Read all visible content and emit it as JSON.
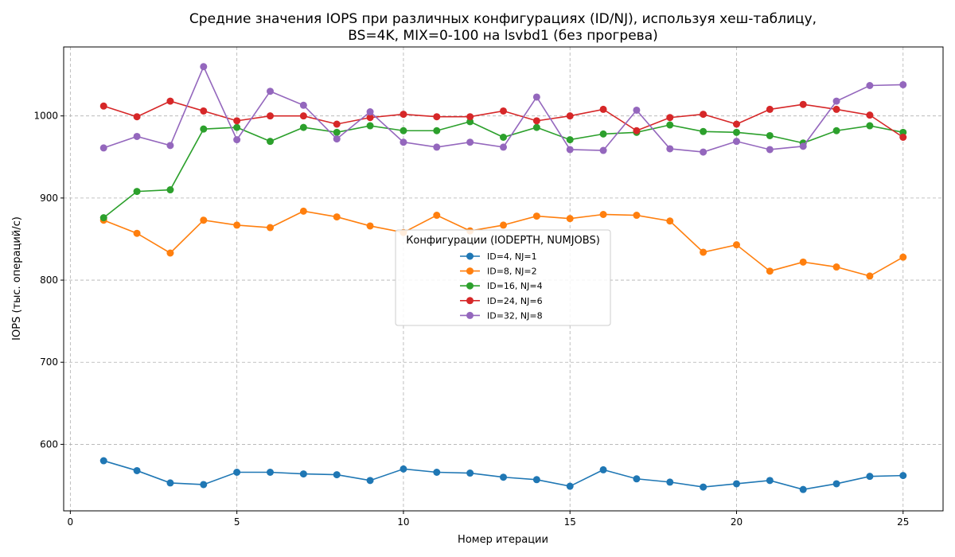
{
  "chart_data": {
    "type": "line",
    "title": "Средние значения IOPS при различных конфигурациях (ID/NJ), используя хеш-таблицу,\nBS=4K, MIX=0-100 на lsvbd1 (без прогрева)",
    "xlabel": "Номер итерации",
    "ylabel": "IOPS (тыс. операций/с)",
    "xlim": [
      -0.2,
      26.2
    ],
    "ylim": [
      519,
      1084
    ],
    "xticks": [
      0,
      5,
      10,
      15,
      20,
      25
    ],
    "yticks": [
      600,
      700,
      800,
      900,
      1000
    ],
    "grid": true,
    "legend": {
      "title": "Конфигурации (IODEPTH, NUMJOBS)",
      "placement": "center"
    },
    "x": [
      1,
      2,
      3,
      4,
      5,
      6,
      7,
      8,
      9,
      10,
      11,
      12,
      13,
      14,
      15,
      16,
      17,
      18,
      19,
      20,
      21,
      22,
      23,
      24,
      25
    ],
    "series": [
      {
        "name": "ID=4, NJ=1",
        "color": "#1f77b4",
        "values": [
          580,
          568,
          553,
          551,
          566,
          566,
          564,
          563,
          556,
          570,
          566,
          565,
          560,
          557,
          549,
          569,
          558,
          554,
          548,
          552,
          556,
          545,
          552,
          561,
          562
        ]
      },
      {
        "name": "ID=8, NJ=2",
        "color": "#ff7f0e",
        "values": [
          873,
          857,
          833,
          873,
          867,
          864,
          884,
          877,
          866,
          858,
          879,
          860,
          867,
          878,
          875,
          880,
          879,
          872,
          834,
          843,
          811,
          822,
          816,
          805,
          828
        ]
      },
      {
        "name": "ID=16, NJ=4",
        "color": "#2ca02c",
        "values": [
          876,
          908,
          910,
          984,
          986,
          969,
          986,
          980,
          988,
          982,
          982,
          993,
          974,
          986,
          971,
          978,
          980,
          989,
          981,
          980,
          976,
          967,
          982,
          988,
          980
        ]
      },
      {
        "name": "ID=24, NJ=6",
        "color": "#d62728",
        "values": [
          1012,
          999,
          1018,
          1006,
          994,
          1000,
          1000,
          990,
          998,
          1002,
          999,
          999,
          1006,
          994,
          1000,
          1008,
          982,
          998,
          1002,
          990,
          1008,
          1014,
          1008,
          1001,
          974
        ]
      },
      {
        "name": "ID=32, NJ=8",
        "color": "#9467bd",
        "values": [
          961,
          975,
          964,
          1060,
          971,
          1030,
          1013,
          972,
          1005,
          968,
          962,
          968,
          962,
          1023,
          959,
          958,
          1007,
          960,
          956,
          969,
          959,
          963,
          1018,
          1037,
          1038
        ]
      }
    ]
  }
}
